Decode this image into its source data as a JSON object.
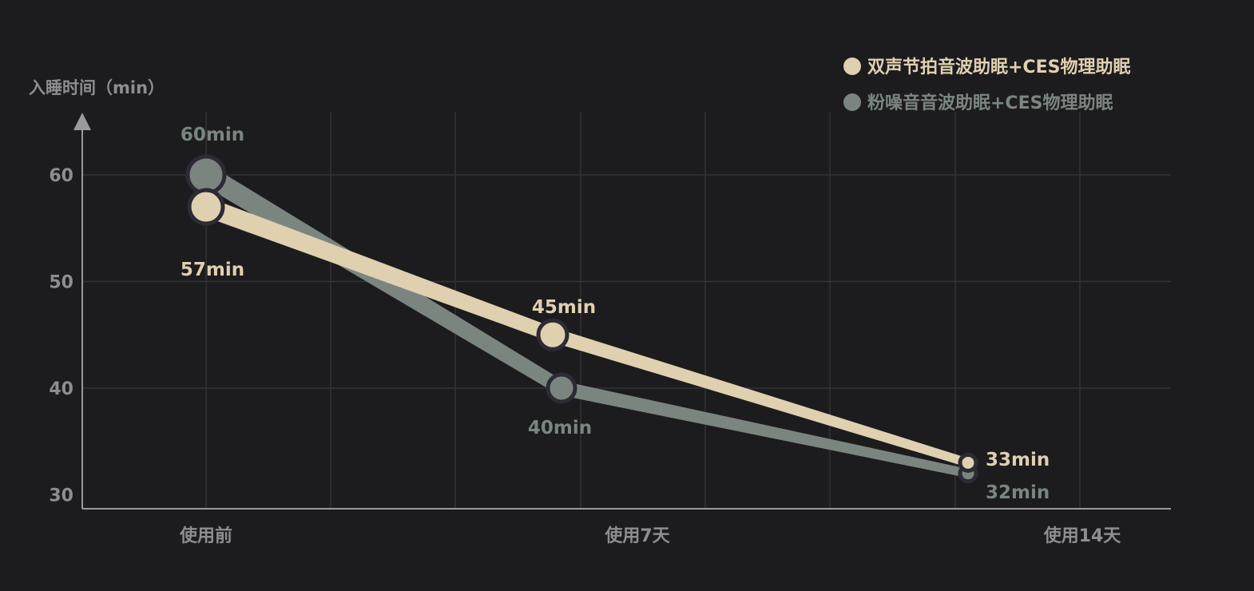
{
  "chart_data": {
    "type": "line",
    "title": "",
    "ylabel": "入睡时间（min）",
    "xlabel": "",
    "categories": [
      "使用前",
      "使用7天",
      "使用14天"
    ],
    "yticks": [
      30,
      40,
      50,
      60
    ],
    "ylim": [
      28.7,
      65
    ],
    "grid": true,
    "legend_position": "top-right",
    "series": [
      {
        "name": "双声节拍音波助眠+CES物理助眠",
        "color": "#dfd0b0",
        "values": [
          57,
          45,
          33
        ],
        "labels": [
          "57min",
          "45min",
          "33min"
        ]
      },
      {
        "name": "粉噪音音波助眠+CES物理助眠",
        "color": "#7b8580",
        "values": [
          60,
          40,
          32
        ],
        "labels": [
          "60min",
          "40min",
          "32min"
        ]
      }
    ]
  }
}
